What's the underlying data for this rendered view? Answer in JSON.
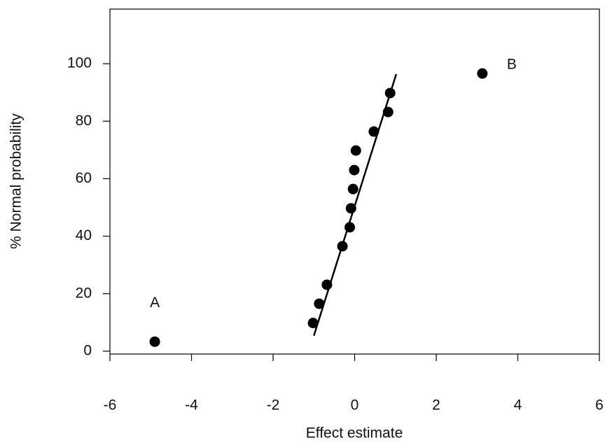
{
  "chart_data": {
    "type": "scatter",
    "x_label": "Effect estimate",
    "y_label": "% Normal probability",
    "x": [
      -4.9,
      -1.02,
      -0.87,
      -0.68,
      -0.3,
      -0.12,
      -0.09,
      -0.04,
      -0.01,
      0.03,
      0.47,
      0.82,
      0.87,
      3.13
    ],
    "values": [
      3.3,
      9.8,
      16.5,
      23.1,
      36.5,
      43.1,
      49.7,
      56.4,
      63.0,
      69.8,
      76.4,
      83.2,
      89.8,
      96.6
    ],
    "color": "#000000",
    "fit_line": {
      "x": [
        -1.0,
        1.02
      ],
      "y": [
        5.4,
        96.4
      ],
      "color": "#000000"
    },
    "annotations": [
      "A",
      "B"
    ],
    "xlim": [
      -6,
      6
    ],
    "xticks": [
      -6,
      -4,
      -2,
      0,
      2,
      4,
      6
    ],
    "ylim": [
      -1,
      119
    ],
    "yticks": [
      0,
      20,
      40,
      60,
      80,
      100
    ],
    "grid": false
  }
}
